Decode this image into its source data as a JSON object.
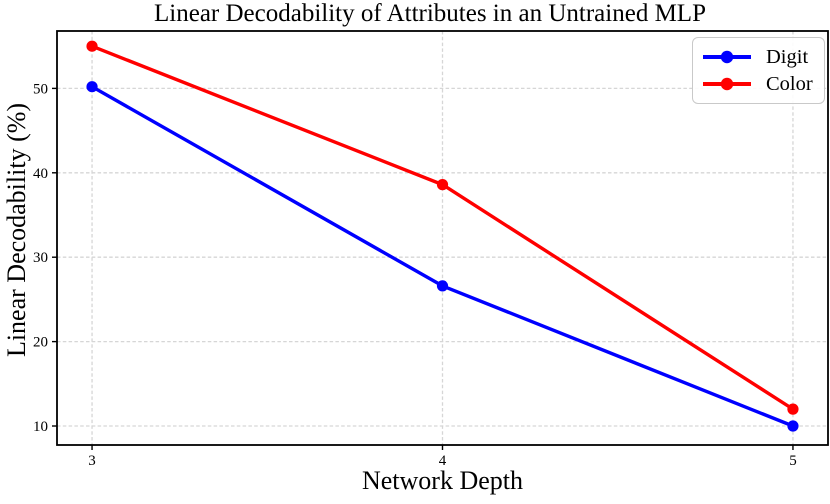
{
  "chart_data": {
    "type": "line",
    "title": "Linear Decodability of Attributes in an Untrained MLP",
    "xlabel": "Network Depth",
    "ylabel": "Linear Decodability (%)",
    "x": [
      3,
      4,
      5
    ],
    "xticks": [
      "3",
      "4",
      "5"
    ],
    "yticks": [
      10,
      20,
      30,
      40,
      50
    ],
    "xlim": [
      2.9,
      5.1
    ],
    "ylim": [
      7.75,
      56.8
    ],
    "grid": true,
    "grid_style": "dashed",
    "grid_color": "#d6d6d6",
    "frame_color": "#000000",
    "background_color": "#ffffff",
    "legend_position": "upper right",
    "series": [
      {
        "name": "Digit",
        "color": "#0000ff",
        "marker": "circle",
        "values": [
          50.2,
          26.6,
          10.0
        ]
      },
      {
        "name": "Color",
        "color": "#ff0000",
        "marker": "circle",
        "values": [
          55.0,
          38.6,
          12.0
        ]
      }
    ]
  }
}
